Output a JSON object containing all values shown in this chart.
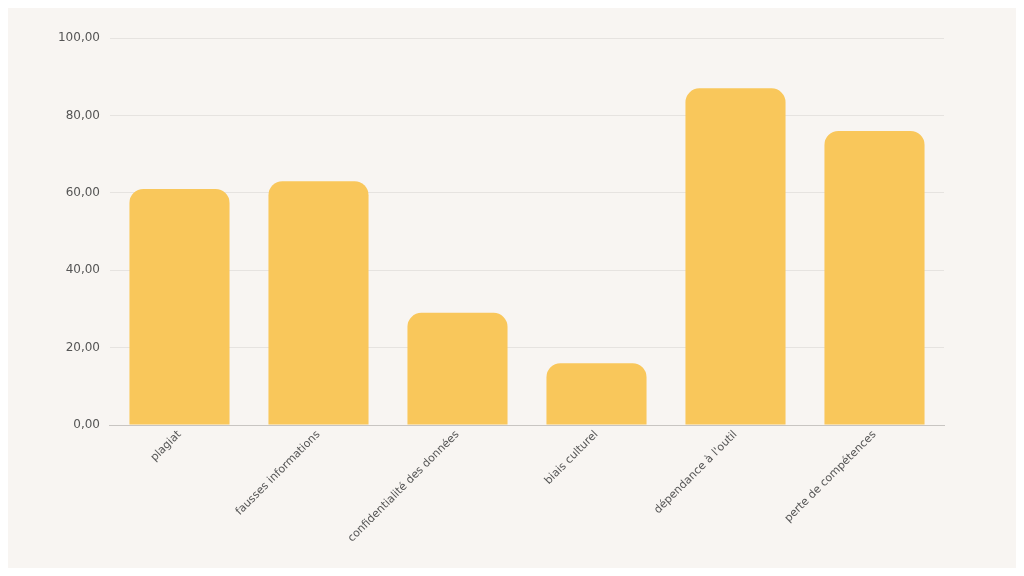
{
  "chart_data": {
    "type": "bar",
    "categories": [
      "plagiat",
      "fausses informations",
      "confidentialité des données",
      "biais culturel",
      "dépendance à l'outil",
      "perte de compétences"
    ],
    "values": [
      61,
      63,
      29,
      16,
      87,
      76
    ],
    "color": "#f9c75b",
    "ylim": [
      0,
      100
    ],
    "yticks": [
      {
        "value": 0,
        "label": "0,00"
      },
      {
        "value": 20,
        "label": "20,00"
      },
      {
        "value": 40,
        "label": "40,00"
      },
      {
        "value": 60,
        "label": "60,00"
      },
      {
        "value": 80,
        "label": "80,00"
      },
      {
        "value": 100,
        "label": "100,00"
      }
    ],
    "grid": "y",
    "legend": false
  }
}
